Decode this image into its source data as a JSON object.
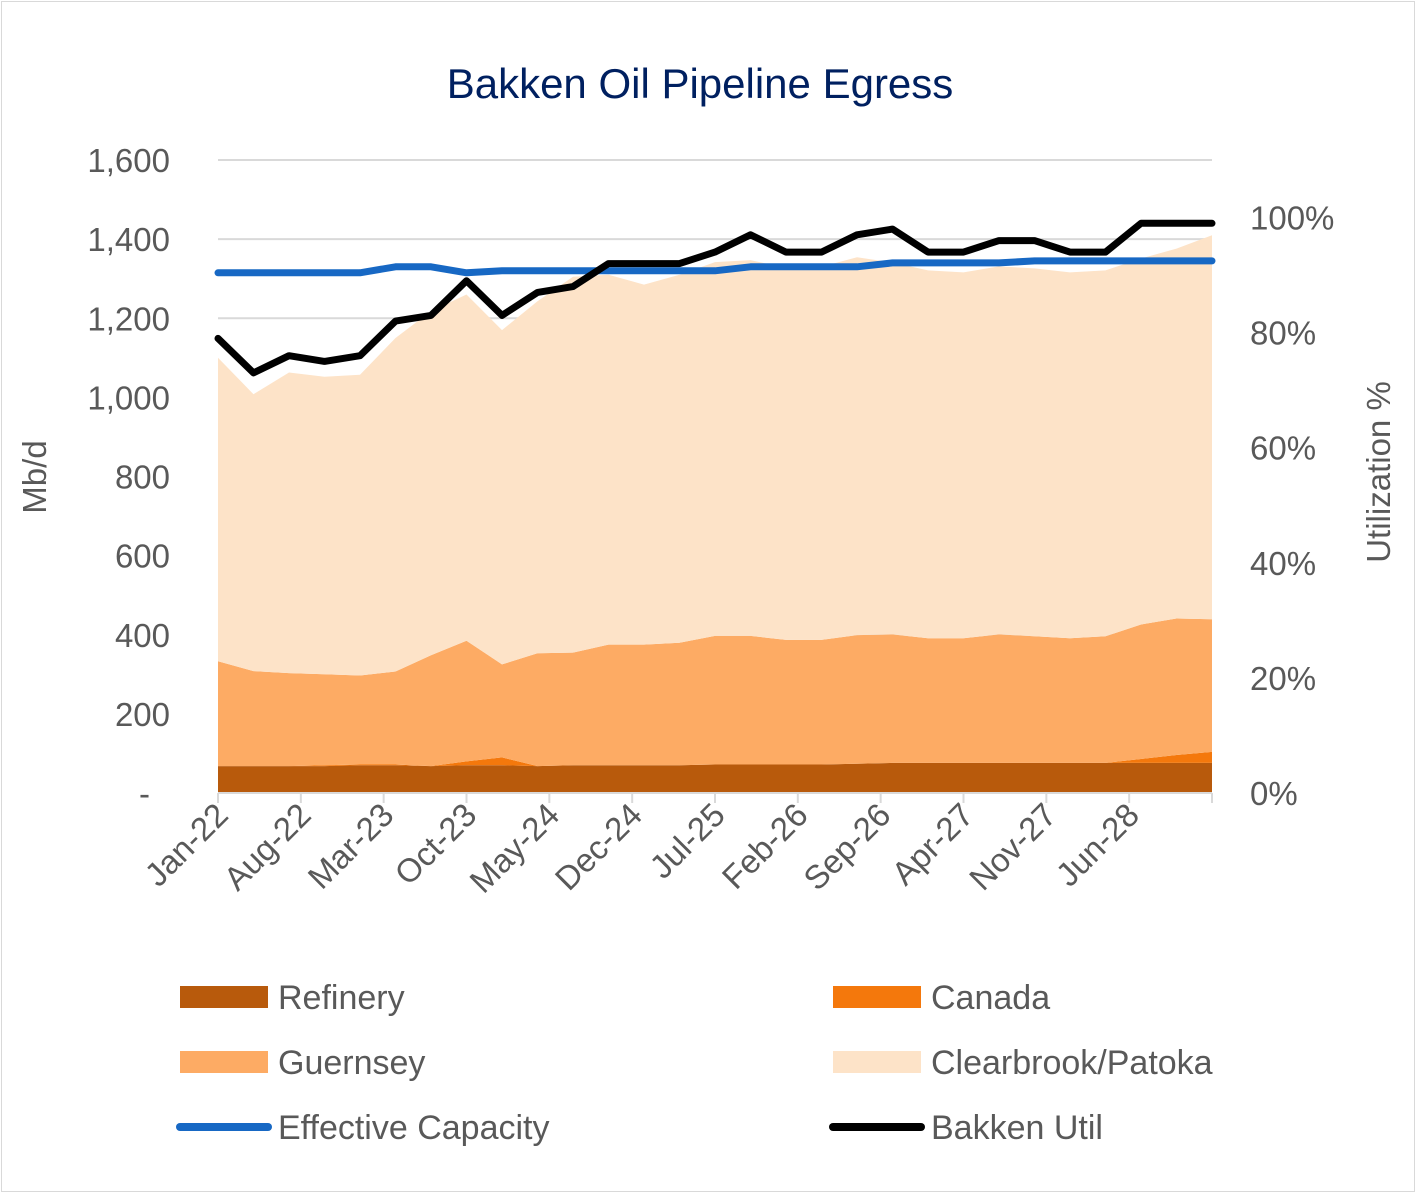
{
  "chart_data": {
    "type": "area",
    "title": "Bakken Oil Pipeline Egress",
    "ylabel": "Mb/d",
    "y2label": "Utilization %",
    "ylim": [
      0,
      1600
    ],
    "y2lim": [
      0,
      110
    ],
    "y_ticks": [
      "-",
      "200",
      "400",
      "600",
      "800",
      "1,000",
      "1,200",
      "1,400",
      "1,600"
    ],
    "y2_ticks": [
      "0%",
      "20%",
      "40%",
      "60%",
      "80%",
      "100%"
    ],
    "x_tick_labels": [
      "Jan-22",
      "Aug-22",
      "Mar-23",
      "Oct-23",
      "May-24",
      "Dec-24",
      "Jul-25",
      "Feb-26",
      "Sep-26",
      "Apr-27",
      "Nov-27",
      "Jun-28"
    ],
    "grid": "horizontal",
    "legend_position": "bottom",
    "colors": {
      "Refinery": "#b85a0c",
      "Canada": "#f4780c",
      "Guernsey": "#fdab64",
      "Clearbrook/Patoka": "#fde3c8",
      "Effective Capacity": "#1768c4",
      "Bakken Util": "#000000"
    },
    "x": [
      "Jan-22",
      "Apr-22",
      "Jul-22",
      "Oct-22",
      "Jan-23",
      "Apr-23",
      "Jul-23",
      "Oct-23",
      "Jan-24",
      "Apr-24",
      "Jul-24",
      "Oct-24",
      "Jan-25",
      "Apr-25",
      "Jul-25",
      "Oct-25",
      "Jan-26",
      "Apr-26",
      "Jul-26",
      "Oct-26",
      "Jan-27",
      "Apr-27",
      "Jul-27",
      "Oct-27",
      "Jan-28",
      "Apr-28",
      "Jul-28",
      "Oct-28",
      "Jan-29"
    ],
    "series": [
      {
        "name": "Refinery",
        "axis": "left",
        "kind": "area",
        "values": [
          68,
          68,
          68,
          68,
          70,
          70,
          68,
          70,
          70,
          68,
          70,
          70,
          70,
          70,
          72,
          72,
          72,
          72,
          74,
          76,
          76,
          76,
          76,
          76,
          76,
          76,
          76,
          76,
          76
        ]
      },
      {
        "name": "Canada",
        "axis": "left",
        "kind": "area",
        "values": [
          0,
          0,
          0,
          2,
          2,
          2,
          0,
          10,
          20,
          0,
          0,
          0,
          0,
          0,
          0,
          0,
          0,
          0,
          0,
          0,
          0,
          0,
          0,
          0,
          0,
          0,
          10,
          20,
          28
        ]
      },
      {
        "name": "Guernsey",
        "axis": "left",
        "kind": "area",
        "values": [
          265,
          240,
          235,
          230,
          225,
          235,
          280,
          305,
          235,
          285,
          285,
          305,
          305,
          310,
          325,
          325,
          315,
          315,
          325,
          325,
          315,
          315,
          325,
          320,
          315,
          320,
          340,
          345,
          335
        ]
      },
      {
        "name": "Clearbrook/Patoka",
        "axis": "left",
        "kind": "area",
        "values": [
          767,
          700,
          760,
          752,
          760,
          843,
          870,
          875,
          845,
          890,
          950,
          935,
          910,
          930,
          945,
          950,
          940,
          943,
          955,
          940,
          930,
          925,
          930,
          930,
          925,
          925,
          925,
          935,
          971
        ]
      },
      {
        "name": "Effective Capacity",
        "axis": "left",
        "kind": "line",
        "values": [
          1315,
          1315,
          1315,
          1315,
          1315,
          1330,
          1330,
          1315,
          1320,
          1320,
          1320,
          1320,
          1320,
          1320,
          1320,
          1330,
          1330,
          1330,
          1330,
          1340,
          1340,
          1340,
          1340,
          1345,
          1345,
          1345,
          1345,
          1345,
          1345
        ]
      },
      {
        "name": "Bakken Util",
        "axis": "right",
        "kind": "line",
        "values": [
          79,
          73,
          76,
          75,
          76,
          82,
          83,
          89,
          83,
          87,
          88,
          92,
          92,
          92,
          94,
          97,
          94,
          94,
          97,
          98,
          94,
          94,
          96,
          96,
          94,
          94,
          99,
          99,
          99
        ]
      }
    ]
  }
}
